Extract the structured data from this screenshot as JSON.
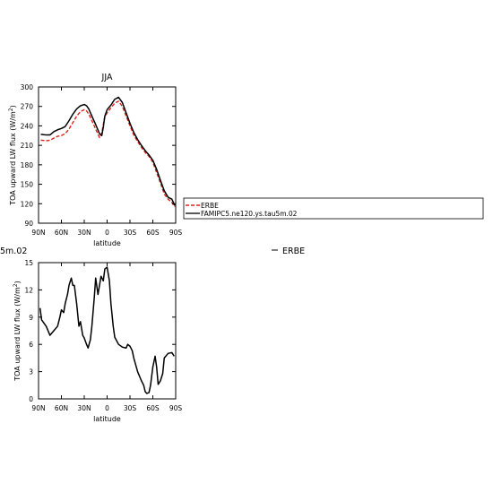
{
  "chart_data": [
    {
      "type": "line",
      "title": "JJA",
      "xlabel": "latitude",
      "ylabel": "TOA upward LW flux (W/m²)",
      "xlim": [
        -90,
        90
      ],
      "ylim": [
        90,
        300
      ],
      "x_ticks": [
        -90,
        -60,
        -30,
        0,
        30,
        60,
        90
      ],
      "x_tick_labels": [
        "90N",
        "60N",
        "30N",
        "0",
        "30S",
        "60S",
        "90S"
      ],
      "y_ticks": [
        90,
        120,
        150,
        180,
        210,
        240,
        270,
        300
      ],
      "y_tick_labels": [
        "90",
        "120",
        "150",
        "180",
        "210",
        "240",
        "270",
        "300"
      ],
      "legend": {
        "placement": "right",
        "entries": [
          {
            "name": "ERBE",
            "color": "#e0201b",
            "style": "dashed"
          },
          {
            "name": "FAMIPC5.ne120.ys.tau5m.02",
            "color": "#000000",
            "style": "solid"
          }
        ]
      },
      "series": [
        {
          "name": "ERBE",
          "color": "#e0201b",
          "style": "dashed",
          "x": [
            -87,
            -80,
            -75,
            -70,
            -65,
            -60,
            -55,
            -50,
            -45,
            -40,
            -35,
            -30,
            -27,
            -24,
            -20,
            -15,
            -10,
            -7,
            -5,
            -3,
            0,
            5,
            10,
            15,
            20,
            25,
            30,
            35,
            40,
            45,
            50,
            55,
            60,
            65,
            70,
            75,
            80,
            85,
            89
          ],
          "y": [
            218,
            217,
            218,
            221,
            224,
            225,
            228,
            235,
            245,
            255,
            262,
            265,
            263,
            258,
            248,
            235,
            222,
            229,
            242,
            254,
            260,
            268,
            275,
            278,
            270,
            255,
            240,
            226,
            216,
            207,
            199,
            193,
            184,
            168,
            152,
            135,
            127,
            122,
            115
          ]
        },
        {
          "name": "FAMIPC5.ne120.ys.tau5m.02",
          "color": "#000000",
          "style": "solid",
          "x": [
            -87,
            -80,
            -75,
            -70,
            -65,
            -60,
            -55,
            -50,
            -45,
            -40,
            -35,
            -30,
            -27,
            -24,
            -20,
            -15,
            -10,
            -7,
            -5,
            -3,
            0,
            5,
            10,
            15,
            20,
            25,
            30,
            35,
            40,
            45,
            50,
            55,
            60,
            65,
            70,
            75,
            80,
            85,
            89
          ],
          "y": [
            227,
            226,
            226,
            231,
            234,
            236,
            239,
            248,
            258,
            266,
            271,
            273,
            271,
            266,
            255,
            242,
            228,
            225,
            238,
            255,
            265,
            272,
            281,
            284,
            276,
            260,
            244,
            230,
            219,
            210,
            202,
            195,
            187,
            173,
            156,
            140,
            130,
            127,
            117
          ]
        }
      ]
    },
    {
      "type": "line",
      "xlabel": "latitude",
      "ylabel": "TOA upward LW flux (W/m²)",
      "xlim": [
        -90,
        90
      ],
      "ylim": [
        0,
        15
      ],
      "x_ticks": [
        -90,
        -60,
        -30,
        0,
        30,
        60,
        90
      ],
      "x_tick_labels": [
        "90N",
        "60N",
        "30N",
        "0",
        "30S",
        "60S",
        "90S"
      ],
      "y_ticks": [
        0,
        3,
        6,
        9,
        12,
        15
      ],
      "y_tick_labels": [
        "0",
        "3",
        "6",
        "9",
        "12",
        "15"
      ],
      "series": [
        {
          "color": "#000000",
          "style": "solid",
          "x": [
            -88,
            -86,
            -80,
            -75,
            -70,
            -65,
            -62,
            -60,
            -57,
            -55,
            -52,
            -50,
            -47,
            -45,
            -43,
            -40,
            -37,
            -35,
            -32,
            -30,
            -27,
            -25,
            -22,
            -20,
            -17,
            -15,
            -12,
            -10,
            -8,
            -5,
            -3,
            0,
            3,
            5,
            8,
            10,
            15,
            20,
            25,
            27,
            30,
            33,
            35,
            40,
            45,
            48,
            50,
            52,
            55,
            57,
            60,
            63,
            65,
            67,
            70,
            73,
            75,
            80,
            85,
            88
          ],
          "y": [
            10,
            8.7,
            8.0,
            7.0,
            7.5,
            8.0,
            9.0,
            9.8,
            9.5,
            10.5,
            11.5,
            12.5,
            13.3,
            12.5,
            12.5,
            10.5,
            8.0,
            8.5,
            7.0,
            6.7,
            6.0,
            5.6,
            6.5,
            8.0,
            11.0,
            13.3,
            11.5,
            12.5,
            13.5,
            13.0,
            14.3,
            14.5,
            13.0,
            10.5,
            8.0,
            6.8,
            6.0,
            5.7,
            5.6,
            6.0,
            5.8,
            5.3,
            4.5,
            3.0,
            2.0,
            1.5,
            0.8,
            0.6,
            0.7,
            1.5,
            3.5,
            4.7,
            3.5,
            1.6,
            2.0,
            2.8,
            4.5,
            5.0,
            5.1,
            4.7
          ]
        }
      ]
    }
  ],
  "fragments": {
    "left": "5m.02",
    "right": "ERBE"
  }
}
